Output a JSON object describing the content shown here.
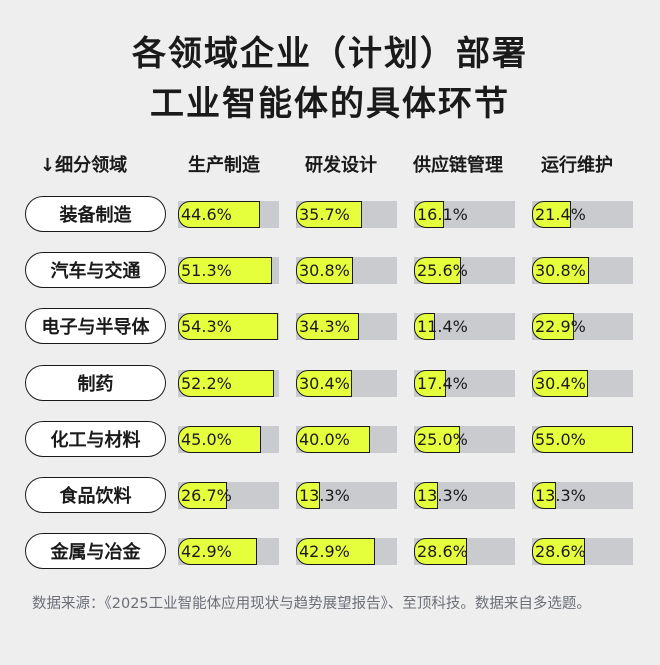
{
  "title_line1": "各领域企业（计划）部署",
  "title_line2": "工业智能体的具体环节",
  "source": "数据来源：《2025工业智能体应用现状与趋势展望报告》、至顶科技。数据来自多选题。",
  "colors": {
    "fill": "#e6ff3c",
    "track": "#c9cbcf",
    "background": "#eeeeef",
    "outline": "#1a1a1a"
  },
  "chart_data": {
    "type": "bar",
    "row_header": "↓细分领域",
    "columns": [
      "生产制造",
      "研发设计",
      "供应链管理",
      "运行维护"
    ],
    "categories": [
      "装备制造",
      "汽车与交通",
      "电子与半导体",
      "制药",
      "化工与材料",
      "食品饮料",
      "金属与冶金"
    ],
    "value_labels": [
      [
        "44.6%",
        "35.7%",
        "16.1%",
        "21.4%"
      ],
      [
        "51.3%",
        "30.8%",
        "25.6%",
        "30.8%"
      ],
      [
        "54.3%",
        "34.3%",
        "11.4%",
        "22.9%"
      ],
      [
        "52.2%",
        "30.4%",
        "17.4%",
        "30.4%"
      ],
      [
        "45.0%",
        "40.0%",
        "25.0%",
        "55.0%"
      ],
      [
        "26.7%",
        "13.3%",
        "13.3%",
        "13.3%"
      ],
      [
        "42.9%",
        "42.9%",
        "28.6%",
        "28.6%"
      ]
    ],
    "series": [
      {
        "name": "生产制造",
        "values": [
          44.6,
          51.3,
          54.3,
          52.2,
          45.0,
          26.7,
          42.9
        ]
      },
      {
        "name": "研发设计",
        "values": [
          35.7,
          30.8,
          34.3,
          30.4,
          40.0,
          13.3,
          42.9
        ]
      },
      {
        "name": "供应链管理",
        "values": [
          16.1,
          25.6,
          11.4,
          17.4,
          25.0,
          13.3,
          28.6
        ]
      },
      {
        "name": "运行维护",
        "values": [
          21.4,
          30.8,
          22.9,
          30.4,
          55.0,
          13.3,
          28.6
        ]
      }
    ],
    "ylim": [
      0,
      100
    ]
  }
}
